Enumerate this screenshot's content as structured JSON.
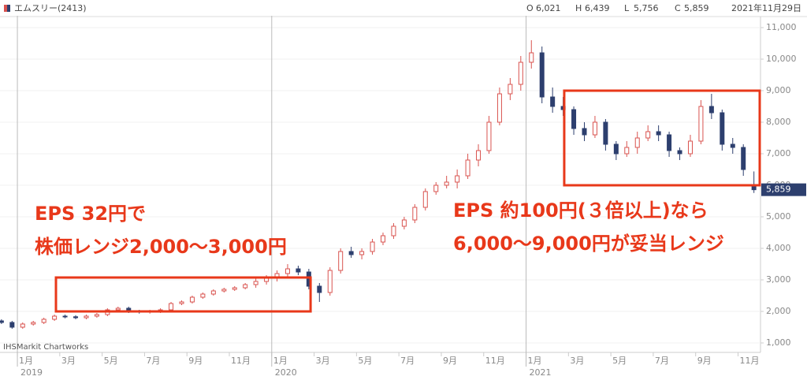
{
  "header": {
    "name": "エムスリー(2413)",
    "quotes": [
      {
        "label": "O",
        "value": "6,021"
      },
      {
        "label": "H",
        "value": "6,439"
      },
      {
        "label": "L",
        "value": "5,756"
      },
      {
        "label": "C",
        "value": "5,859"
      }
    ],
    "date": "2021年11月29日"
  },
  "chart_data": {
    "type": "candlestick",
    "up_color": "#d9534f",
    "down_color": "#2d3f6e",
    "grid": true,
    "xlim": [
      -0.82,
      35.06
    ],
    "ylim": [
      700,
      11375
    ],
    "yticks": [
      {
        "value": 1000,
        "label": "1,000"
      },
      {
        "value": 2000,
        "label": "2,000"
      },
      {
        "value": 3000,
        "label": "3,000"
      },
      {
        "value": 4000,
        "label": "4,000"
      },
      {
        "value": 5000,
        "label": "5,000"
      },
      {
        "value": 6000,
        "label": "6,000"
      },
      {
        "value": 7000,
        "label": "7,000"
      },
      {
        "value": 8000,
        "label": "8,000"
      },
      {
        "value": 9000,
        "label": "9,000"
      },
      {
        "value": 10000,
        "label": "10,000"
      },
      {
        "value": 11000,
        "label": "11,000"
      }
    ],
    "xticks": [
      {
        "value": 0,
        "label": "1月"
      },
      {
        "value": 2,
        "label": "3月"
      },
      {
        "value": 4,
        "label": "5月"
      },
      {
        "value": 6,
        "label": "7月"
      },
      {
        "value": 8,
        "label": "9月"
      },
      {
        "value": 10,
        "label": "11月"
      },
      {
        "value": 12,
        "label": "1月"
      },
      {
        "value": 14,
        "label": "3月"
      },
      {
        "value": 16,
        "label": "5月"
      },
      {
        "value": 18,
        "label": "7月"
      },
      {
        "value": 20,
        "label": "9月"
      },
      {
        "value": 22,
        "label": "11月"
      },
      {
        "value": 24,
        "label": "1月"
      },
      {
        "value": 26,
        "label": "3月"
      },
      {
        "value": 28,
        "label": "5月"
      },
      {
        "value": 30,
        "label": "7月"
      },
      {
        "value": 32,
        "label": "9月"
      },
      {
        "value": 34,
        "label": "11月"
      }
    ],
    "year_ticks": [
      {
        "value": 0,
        "label": "2019"
      },
      {
        "value": 12,
        "label": "2020"
      },
      {
        "value": 24,
        "label": "2021"
      }
    ],
    "x": [
      -0.75,
      -0.25,
      0.25,
      0.75,
      1.25,
      1.75,
      2.25,
      2.75,
      3.25,
      3.75,
      4.25,
      4.75,
      5.25,
      5.75,
      6.25,
      6.75,
      7.25,
      7.75,
      8.25,
      8.75,
      9.25,
      9.75,
      10.25,
      10.75,
      11.25,
      11.75,
      12.25,
      12.75,
      13.25,
      13.75,
      14.25,
      14.75,
      15.25,
      15.75,
      16.25,
      16.75,
      17.25,
      17.75,
      18.25,
      18.75,
      19.25,
      19.75,
      20.25,
      20.75,
      21.25,
      21.75,
      22.25,
      22.75,
      23.25,
      23.75,
      24.25,
      24.75,
      25.25,
      25.75,
      26.25,
      26.75,
      27.25,
      27.75,
      28.25,
      28.75,
      29.25,
      29.75,
      30.25,
      30.75,
      31.25,
      31.75,
      32.25,
      32.75,
      33.25,
      33.75,
      34.25,
      34.75
    ],
    "ohlc": [
      [
        1700,
        1750,
        1600,
        1650
      ],
      [
        1650,
        1700,
        1450,
        1500
      ],
      [
        1500,
        1650,
        1450,
        1600
      ],
      [
        1600,
        1700,
        1550,
        1650
      ],
      [
        1650,
        1800,
        1600,
        1750
      ],
      [
        1750,
        1900,
        1700,
        1850
      ],
      [
        1850,
        1900,
        1780,
        1830
      ],
      [
        1830,
        1880,
        1750,
        1800
      ],
      [
        1800,
        1900,
        1750,
        1850
      ],
      [
        1850,
        1950,
        1800,
        1900
      ],
      [
        1900,
        2100,
        1850,
        2050
      ],
      [
        2050,
        2150,
        2000,
        2100
      ],
      [
        2100,
        2150,
        1950,
        2000
      ],
      [
        2000,
        2050,
        1930,
        1980
      ],
      [
        1980,
        2050,
        1930,
        2000
      ],
      [
        2000,
        2100,
        1950,
        2050
      ],
      [
        2050,
        2300,
        2000,
        2250
      ],
      [
        2250,
        2350,
        2200,
        2300
      ],
      [
        2300,
        2500,
        2250,
        2450
      ],
      [
        2450,
        2600,
        2400,
        2550
      ],
      [
        2550,
        2700,
        2500,
        2650
      ],
      [
        2650,
        2750,
        2600,
        2700
      ],
      [
        2700,
        2800,
        2650,
        2750
      ],
      [
        2750,
        2900,
        2700,
        2850
      ],
      [
        2850,
        3050,
        2750,
        2950
      ],
      [
        2950,
        3150,
        2850,
        3050
      ],
      [
        3050,
        3300,
        2950,
        3200
      ],
      [
        3200,
        3500,
        3100,
        3350
      ],
      [
        3350,
        3450,
        3150,
        3250
      ],
      [
        3250,
        3350,
        2700,
        2800
      ],
      [
        2800,
        2900,
        2300,
        2600
      ],
      [
        2600,
        3400,
        2500,
        3300
      ],
      [
        3300,
        4000,
        3200,
        3900
      ],
      [
        3900,
        4050,
        3700,
        3800
      ],
      [
        3800,
        4000,
        3650,
        3900
      ],
      [
        3900,
        4300,
        3800,
        4200
      ],
      [
        4200,
        4500,
        4100,
        4400
      ],
      [
        4400,
        4800,
        4300,
        4700
      ],
      [
        4700,
        5000,
        4600,
        4900
      ],
      [
        4900,
        5400,
        4800,
        5300
      ],
      [
        5300,
        5900,
        5200,
        5800
      ],
      [
        5800,
        6100,
        5700,
        6000
      ],
      [
        6000,
        6300,
        5900,
        6100
      ],
      [
        6100,
        6500,
        5900,
        6300
      ],
      [
        6300,
        7000,
        6200,
        6800
      ],
      [
        6800,
        7300,
        6600,
        7100
      ],
      [
        7100,
        8200,
        7000,
        8000
      ],
      [
        8000,
        9100,
        7900,
        8900
      ],
      [
        8900,
        9400,
        8700,
        9200
      ],
      [
        9200,
        10100,
        9000,
        9900
      ],
      [
        9900,
        10600,
        9700,
        10200
      ],
      [
        10200,
        10400,
        8600,
        8800
      ],
      [
        8800,
        9100,
        8300,
        8500
      ],
      [
        8500,
        8800,
        8200,
        8400
      ],
      [
        8400,
        8500,
        7600,
        7800
      ],
      [
        7800,
        8000,
        7400,
        7600
      ],
      [
        7600,
        8200,
        7500,
        8000
      ],
      [
        8000,
        8100,
        7100,
        7300
      ],
      [
        7300,
        7400,
        6800,
        7000
      ],
      [
        7000,
        7400,
        6900,
        7200
      ],
      [
        7200,
        7700,
        7000,
        7500
      ],
      [
        7500,
        7900,
        7400,
        7700
      ],
      [
        7700,
        7900,
        7400,
        7600
      ],
      [
        7600,
        7700,
        6900,
        7100
      ],
      [
        7100,
        7200,
        6800,
        7000
      ],
      [
        7000,
        7600,
        6900,
        7400
      ],
      [
        7400,
        8700,
        7300,
        8500
      ],
      [
        8500,
        8900,
        8100,
        8300
      ],
      [
        8300,
        8400,
        7100,
        7300
      ],
      [
        7300,
        7500,
        7000,
        7200
      ],
      [
        7200,
        7300,
        6300,
        6500
      ],
      [
        6021,
        6439,
        5756,
        5859
      ]
    ],
    "last_label": "5,859",
    "watermark": "IHSMarkit Chartworks",
    "highlights": [
      {
        "x": [
          1.82,
          13.87
        ],
        "y": [
          2000,
          3075
        ],
        "color": "#e8381a",
        "lines": [
          "EPS 32円で",
          "株価レンジ2,000～3,000円"
        ]
      },
      {
        "x": [
          25.8,
          35.06
        ],
        "y": [
          6000,
          9000
        ],
        "color": "#e8381a",
        "lines": [
          "EPS 約100円(３倍以上)なら",
          "6,000～9,000円が妥当レンジ"
        ]
      }
    ]
  }
}
